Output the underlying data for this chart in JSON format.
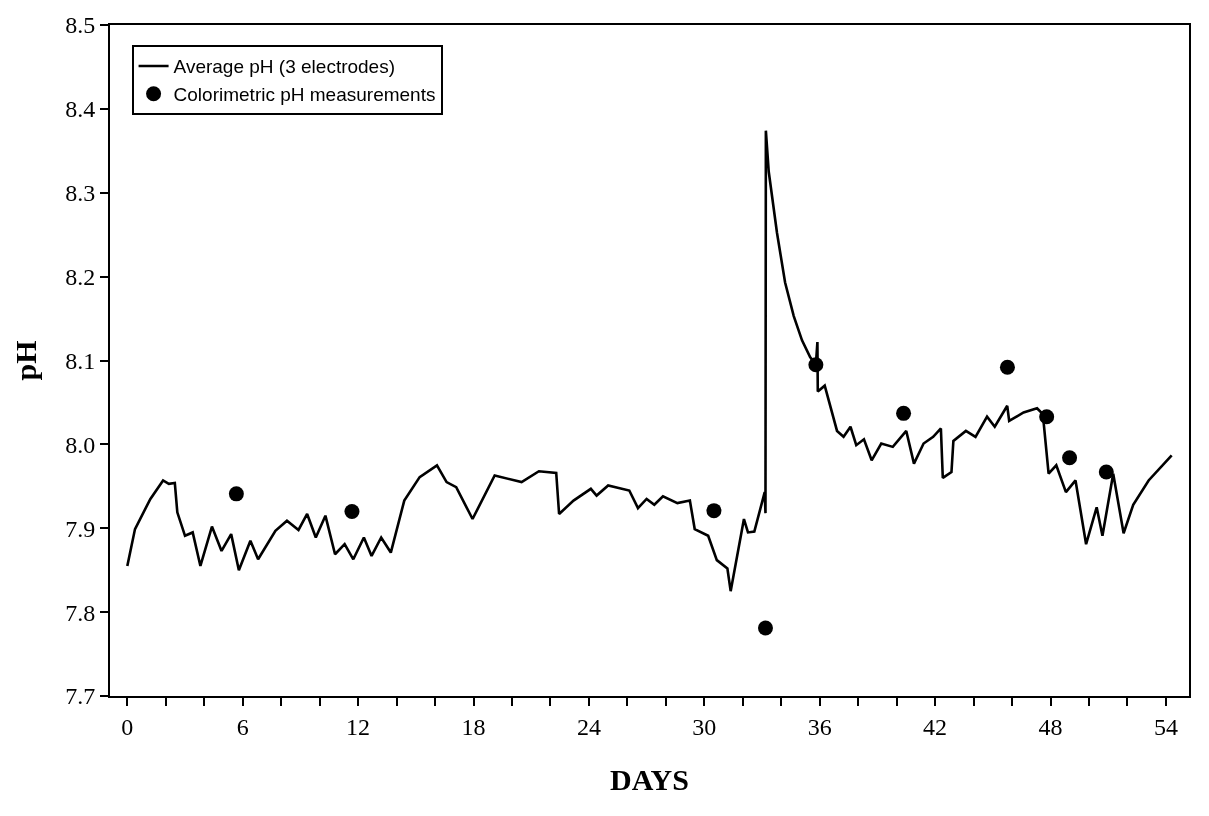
{
  "chart_data": {
    "type": "line",
    "xlabel": "DAYS",
    "ylabel": "pH",
    "xlim": [
      -0.9,
      55.2
    ],
    "ylim": [
      7.7,
      8.5
    ],
    "xticks": [
      0,
      {
        "value": 2,
        "label": null
      },
      {
        "value": 4,
        "label": null
      },
      6,
      {
        "value": 8,
        "label": null
      },
      {
        "value": 10,
        "label": null
      },
      12,
      {
        "value": 14,
        "label": null
      },
      {
        "value": 16,
        "label": null
      },
      18,
      {
        "value": 20,
        "label": null
      },
      {
        "value": 22,
        "label": null
      },
      24,
      {
        "value": 26,
        "label": null
      },
      {
        "value": 28,
        "label": null
      },
      30,
      {
        "value": 32,
        "label": null
      },
      {
        "value": 34,
        "label": null
      },
      36,
      {
        "value": 38,
        "label": null
      },
      {
        "value": 40,
        "label": null
      },
      42,
      {
        "value": 44,
        "label": null
      },
      {
        "value": 46,
        "label": null
      },
      48,
      {
        "value": 50,
        "label": null
      },
      {
        "value": 52,
        "label": null
      },
      54
    ],
    "yticks": [
      {
        "value": 7.7,
        "label": "7.7"
      },
      {
        "value": 7.8,
        "label": "7.8"
      },
      {
        "value": 7.9,
        "label": "7.9"
      },
      {
        "value": 8.0,
        "label": "8.0"
      },
      {
        "value": 8.1,
        "label": "8.1"
      },
      {
        "value": 8.2,
        "label": "8.2"
      },
      {
        "value": 8.3,
        "label": "8.3"
      },
      {
        "value": 8.4,
        "label": "8.4"
      },
      {
        "value": 8.5,
        "label": "8.5"
      }
    ],
    "legend": "top left",
    "series": [
      {
        "name": "Average pH (3 electrodes)",
        "color": "#000000",
        "marker": "none",
        "line_style": "solid",
        "x": [
          0,
          0.4,
          1.2,
          1.86,
          2.16,
          2.47,
          2.6,
          3.0,
          3.4,
          3.8,
          4.4,
          4.9,
          5.4,
          5.8,
          6.4,
          6.8,
          7.7,
          8.3,
          8.9,
          9.35,
          9.8,
          10.3,
          10.8,
          11.3,
          11.75,
          12.3,
          12.7,
          13.2,
          13.7,
          14.4,
          15.2,
          16.1,
          16.6,
          17.1,
          17.95,
          19.1,
          20.5,
          21.4,
          22.3,
          22.45,
          23.2,
          24.1,
          24.4,
          25.0,
          26.1,
          26.55,
          27.0,
          27.4,
          27.85,
          28.6,
          29.25,
          29.5,
          30.2,
          30.65,
          31.2,
          31.37,
          32.06,
          32.27,
          32.6,
          33.14,
          33.18,
          33.2,
          33.35,
          33.78,
          34.2,
          34.65,
          35.08,
          35.5,
          35.8,
          35.88,
          35.9,
          36.26,
          36.9,
          37.24,
          37.6,
          37.9,
          38.3,
          38.7,
          39.2,
          39.8,
          40.5,
          40.9,
          41.4,
          41.9,
          42.3,
          42.4,
          42.85,
          42.95,
          43.6,
          44.1,
          44.7,
          45.1,
          45.75,
          45.85,
          46.6,
          47.3,
          47.6,
          47.9,
          48.3,
          48.8,
          49.3,
          49.85,
          50.4,
          50.7,
          51.26,
          51.8,
          52.3,
          53.1,
          54.3
        ],
        "values": [
          7.855,
          7.899,
          7.935,
          7.957,
          7.953,
          7.954,
          7.919,
          7.891,
          7.895,
          7.855,
          7.902,
          7.873,
          7.893,
          7.85,
          7.885,
          7.863,
          7.897,
          7.909,
          7.898,
          7.917,
          7.889,
          7.915,
          7.869,
          7.881,
          7.863,
          7.889,
          7.867,
          7.889,
          7.871,
          7.933,
          7.961,
          7.975,
          7.955,
          7.949,
          7.911,
          7.963,
          7.955,
          7.968,
          7.966,
          7.917,
          7.933,
          7.947,
          7.939,
          7.951,
          7.945,
          7.924,
          7.935,
          7.928,
          7.938,
          7.93,
          7.933,
          7.899,
          7.891,
          7.862,
          7.852,
          7.825,
          7.911,
          7.895,
          7.896,
          7.943,
          7.918,
          8.374,
          8.325,
          8.252,
          8.193,
          8.153,
          8.124,
          8.104,
          8.095,
          8.122,
          8.063,
          8.07,
          8.016,
          8.009,
          8.021,
          7.999,
          8.006,
          7.981,
          8.001,
          7.997,
          8.016,
          7.977,
          8.001,
          8.009,
          8.019,
          7.96,
          7.967,
          8.004,
          8.016,
          8.009,
          8.033,
          8.021,
          8.046,
          8.028,
          8.038,
          8.043,
          8.036,
          7.965,
          7.975,
          7.943,
          7.957,
          7.881,
          7.925,
          7.891,
          7.965,
          7.894,
          7.928,
          7.957,
          7.987
        ]
      },
      {
        "name": "Colorimetric pH measurements",
        "type": "scatter",
        "color": "#000000",
        "marker": "circle",
        "x": [
          5.67,
          11.68,
          30.5,
          33.18,
          35.8,
          40.36,
          45.76,
          47.8,
          48.99,
          50.9
        ],
        "values": [
          7.941,
          7.92,
          7.921,
          7.781,
          8.095,
          8.037,
          8.092,
          8.033,
          7.984,
          7.967
        ]
      }
    ]
  }
}
